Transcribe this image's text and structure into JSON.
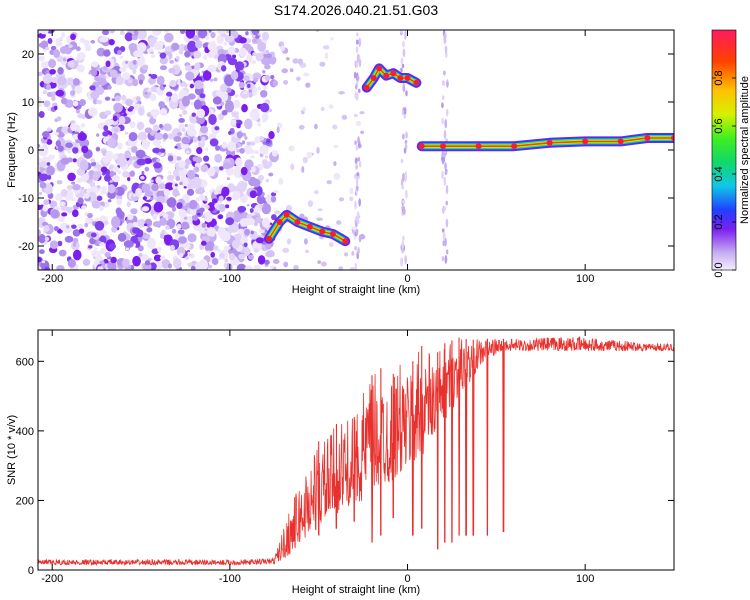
{
  "title": "S174.2026.040.21.51.G03",
  "chart_data": [
    {
      "type": "heatmap",
      "name": "spectrogram",
      "xlabel": "Height of straight line (km)",
      "ylabel": "Frequency (Hz)",
      "xlim": [
        -208,
        150
      ],
      "ylim": [
        -25,
        25
      ],
      "xticks": [
        -200,
        -100,
        0,
        100
      ],
      "xtick_labels": [
        "-200",
        "-100",
        "0",
        "100"
      ],
      "yticks": [
        -20,
        -10,
        0,
        10,
        20
      ],
      "ytick_labels": [
        "-20",
        "-10",
        "0",
        "10",
        "20"
      ],
      "colorbar": {
        "label": "Normalized spectral amplitude",
        "range": [
          0,
          1
        ],
        "ticks": [
          0.0,
          0.2,
          0.4,
          0.6,
          0.8
        ],
        "tick_labels": [
          "0.0",
          "0.2",
          "0.4",
          "0.6",
          "0.8"
        ]
      },
      "noise_region_km": [
        -208,
        -75
      ],
      "tracks": [
        {
          "name": "lower tone",
          "points": [
            [
              -78,
              -18.5
            ],
            [
              -72,
              -15
            ],
            [
              -68,
              -13.5
            ],
            [
              -62,
              -15
            ],
            [
              -55,
              -16
            ],
            [
              -48,
              -17
            ],
            [
              -42,
              -17.5
            ],
            [
              -35,
              -19
            ]
          ]
        },
        {
          "name": "upper tone",
          "points": [
            [
              -23,
              13
            ],
            [
              -19,
              15
            ],
            [
              -16,
              17
            ],
            [
              -12,
              15.5
            ],
            [
              -8,
              16
            ],
            [
              -4,
              15
            ],
            [
              0,
              15
            ],
            [
              5,
              14
            ]
          ]
        },
        {
          "name": "carrier",
          "points": [
            [
              8,
              0.8
            ],
            [
              20,
              0.8
            ],
            [
              40,
              0.8
            ],
            [
              60,
              0.8
            ],
            [
              80,
              1.5
            ],
            [
              100,
              1.8
            ],
            [
              120,
              1.8
            ],
            [
              135,
              2.5
            ],
            [
              150,
              2.5
            ]
          ]
        }
      ]
    },
    {
      "type": "line",
      "name": "snr",
      "xlabel": "Height of straight line (km)",
      "ylabel": "SNR (10 * v/v)",
      "xlim": [
        -208,
        150
      ],
      "ylim": [
        0,
        690
      ],
      "xticks": [
        -200,
        -100,
        0,
        100
      ],
      "xtick_labels": [
        "-200",
        "-100",
        "0",
        "100"
      ],
      "yticks": [
        0,
        200,
        400,
        600
      ],
      "ytick_labels": [
        "0",
        "200",
        "400",
        "600"
      ],
      "color": "#e8302c",
      "series": [
        {
          "name": "SNR envelope",
          "x": [
            -208,
            -180,
            -150,
            -120,
            -90,
            -75,
            -70,
            -65,
            -60,
            -55,
            -50,
            -45,
            -40,
            -35,
            -30,
            -25,
            -20,
            -15,
            -10,
            -5,
            0,
            5,
            10,
            15,
            20,
            25,
            30,
            35,
            40,
            45,
            50,
            55,
            60,
            70,
            80,
            100,
            120,
            150
          ],
          "baseline": [
            15,
            15,
            15,
            15,
            15,
            18,
            30,
            50,
            80,
            100,
            120,
            140,
            160,
            180,
            190,
            200,
            220,
            240,
            250,
            270,
            290,
            310,
            340,
            380,
            420,
            460,
            500,
            540,
            580,
            610,
            620,
            630,
            630,
            630,
            630,
            630,
            630,
            630
          ],
          "peaks": [
            30,
            30,
            30,
            30,
            30,
            35,
            120,
            200,
            250,
            320,
            370,
            380,
            420,
            430,
            440,
            520,
            560,
            580,
            540,
            600,
            570,
            620,
            660,
            610,
            650,
            660,
            670,
            660,
            665,
            665,
            665,
            665,
            665,
            665,
            670,
            670,
            660,
            650
          ]
        }
      ],
      "dropouts": [
        {
          "x": -50,
          "y": 100
        },
        {
          "x": -40,
          "y": 120
        },
        {
          "x": -30,
          "y": 140
        },
        {
          "x": -20,
          "y": 80
        },
        {
          "x": -15,
          "y": 100
        },
        {
          "x": -8,
          "y": 150
        },
        {
          "x": 3,
          "y": 100
        },
        {
          "x": 8,
          "y": 120
        },
        {
          "x": 17,
          "y": 60
        },
        {
          "x": 21,
          "y": 80
        },
        {
          "x": 25,
          "y": 80
        },
        {
          "x": 29,
          "y": 100
        },
        {
          "x": 33,
          "y": 100
        },
        {
          "x": 37,
          "y": 100
        },
        {
          "x": 45,
          "y": 100
        },
        {
          "x": 54,
          "y": 110
        }
      ]
    }
  ]
}
